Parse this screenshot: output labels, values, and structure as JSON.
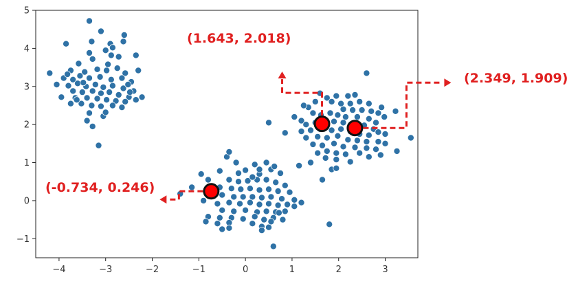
{
  "chart_data": {
    "type": "scatter",
    "title": "",
    "xlabel": "",
    "ylabel": "",
    "xlim": [
      -4.5,
      3.7
    ],
    "ylim": [
      -1.5,
      5.0
    ],
    "xticks": [
      -4,
      -3,
      -2,
      -1,
      0,
      1,
      2,
      3
    ],
    "yticks": [
      -1,
      0,
      1,
      2,
      3,
      4,
      5
    ],
    "xtick_labels": [
      "−4",
      "−3",
      "−2",
      "−1",
      "0",
      "1",
      "2",
      "3"
    ],
    "ytick_labels": [
      "−1",
      "0",
      "1",
      "2",
      "3",
      "4",
      "5"
    ],
    "grid": false,
    "point_color": "#2f72a6",
    "point_edge_color": "#ffffff",
    "highlight_color": "#ff0000",
    "highlight_edge_color": "#111111",
    "annotation_color": "#e02020",
    "series": [
      {
        "points": [
          [
            -3.35,
            4.72
          ],
          [
            -3.1,
            4.45
          ],
          [
            -3.85,
            4.12
          ],
          [
            -3.3,
            4.18
          ],
          [
            -2.9,
            4.12
          ],
          [
            -2.62,
            4.18
          ],
          [
            -2.85,
            4.02
          ],
          [
            -3.0,
            3.95
          ],
          [
            -3.35,
            3.88
          ],
          [
            -2.88,
            3.82
          ],
          [
            -2.35,
            3.82
          ],
          [
            -3.28,
            3.72
          ],
          [
            -2.72,
            3.78
          ],
          [
            -4.2,
            3.35
          ],
          [
            -3.75,
            3.42
          ],
          [
            -3.45,
            3.38
          ],
          [
            -3.18,
            3.45
          ],
          [
            -2.98,
            3.42
          ],
          [
            -2.75,
            3.48
          ],
          [
            -2.58,
            3.35
          ],
          [
            -2.3,
            3.42
          ],
          [
            -3.9,
            3.22
          ],
          [
            -3.7,
            3.18
          ],
          [
            -3.55,
            3.28
          ],
          [
            -3.35,
            3.22
          ],
          [
            -3.12,
            3.25
          ],
          [
            -2.88,
            3.18
          ],
          [
            -2.65,
            3.22
          ],
          [
            -2.45,
            3.12
          ],
          [
            -4.05,
            3.05
          ],
          [
            -3.8,
            3.02
          ],
          [
            -3.6,
            3.08
          ],
          [
            -3.42,
            3.0
          ],
          [
            -3.22,
            3.05
          ],
          [
            -3.05,
            2.98
          ],
          [
            -2.85,
            3.02
          ],
          [
            -2.62,
            2.95
          ],
          [
            -2.4,
            2.88
          ],
          [
            -3.7,
            2.88
          ],
          [
            -3.5,
            2.85
          ],
          [
            -3.28,
            2.88
          ],
          [
            -3.1,
            2.82
          ],
          [
            -2.92,
            2.85
          ],
          [
            -2.72,
            2.78
          ],
          [
            -2.5,
            2.72
          ],
          [
            -2.22,
            2.72
          ],
          [
            -3.95,
            2.72
          ],
          [
            -3.65,
            2.7
          ],
          [
            -3.4,
            2.7
          ],
          [
            -3.18,
            2.68
          ],
          [
            -2.98,
            2.65
          ],
          [
            -2.78,
            2.62
          ],
          [
            -2.58,
            2.6
          ],
          [
            -2.35,
            2.65
          ],
          [
            -3.75,
            2.55
          ],
          [
            -3.52,
            2.55
          ],
          [
            -3.3,
            2.5
          ],
          [
            -3.1,
            2.48
          ],
          [
            -2.85,
            2.5
          ],
          [
            -2.65,
            2.45
          ],
          [
            -3.35,
            2.3
          ],
          [
            -3.05,
            2.22
          ],
          [
            -3.4,
            2.1
          ],
          [
            -3.28,
            1.95
          ],
          [
            -3.15,
            1.45
          ],
          [
            -3.58,
            3.6
          ],
          [
            -2.95,
            3.58
          ],
          [
            -3.48,
            3.1
          ],
          [
            -2.52,
            3.05
          ],
          [
            -3.62,
            2.65
          ],
          [
            -2.48,
            2.85
          ],
          [
            -3.0,
            2.32
          ],
          [
            -3.82,
            3.32
          ],
          [
            -2.6,
            4.35
          ],
          [
            0.5,
            2.05
          ],
          [
            1.05,
            2.2
          ],
          [
            1.2,
            2.1
          ],
          [
            1.35,
            2.45
          ],
          [
            1.5,
            2.6
          ],
          [
            1.75,
            2.7
          ],
          [
            1.95,
            2.75
          ],
          [
            2.2,
            2.75
          ],
          [
            2.35,
            2.78
          ],
          [
            1.6,
            2.82
          ],
          [
            1.85,
            2.6
          ],
          [
            2.05,
            2.55
          ],
          [
            2.25,
            2.55
          ],
          [
            2.45,
            2.6
          ],
          [
            2.65,
            2.55
          ],
          [
            2.6,
            3.35
          ],
          [
            2.1,
            2.4
          ],
          [
            2.3,
            2.38
          ],
          [
            2.5,
            2.38
          ],
          [
            2.7,
            2.35
          ],
          [
            2.85,
            2.3
          ],
          [
            2.98,
            2.2
          ],
          [
            1.45,
            2.3
          ],
          [
            1.62,
            2.25
          ],
          [
            1.82,
            2.3
          ],
          [
            1.98,
            2.25
          ],
          [
            2.15,
            2.2
          ],
          [
            2.4,
            2.2
          ],
          [
            2.65,
            2.15
          ],
          [
            2.8,
            2.05
          ],
          [
            1.3,
            2.0
          ],
          [
            1.5,
            2.05
          ],
          [
            1.7,
            2.05
          ],
          [
            1.9,
            2.08
          ],
          [
            2.1,
            2.05
          ],
          [
            2.3,
            2.02
          ],
          [
            2.55,
            1.98
          ],
          [
            2.75,
            1.88
          ],
          [
            1.2,
            1.82
          ],
          [
            1.4,
            1.85
          ],
          [
            1.6,
            1.88
          ],
          [
            1.85,
            1.85
          ],
          [
            2.05,
            1.88
          ],
          [
            2.25,
            1.82
          ],
          [
            2.45,
            1.75
          ],
          [
            2.65,
            1.72
          ],
          [
            2.85,
            1.8
          ],
          [
            3.0,
            1.75
          ],
          [
            1.3,
            1.65
          ],
          [
            1.55,
            1.68
          ],
          [
            1.75,
            1.65
          ],
          [
            1.98,
            1.7
          ],
          [
            2.2,
            1.6
          ],
          [
            2.4,
            1.58
          ],
          [
            2.6,
            1.55
          ],
          [
            2.85,
            1.55
          ],
          [
            1.45,
            1.48
          ],
          [
            1.65,
            1.45
          ],
          [
            1.9,
            1.5
          ],
          [
            2.1,
            1.42
          ],
          [
            2.35,
            1.4
          ],
          [
            2.6,
            1.38
          ],
          [
            2.8,
            1.35
          ],
          [
            3.0,
            1.5
          ],
          [
            1.55,
            1.25
          ],
          [
            1.75,
            1.3
          ],
          [
            1.95,
            1.25
          ],
          [
            2.15,
            1.22
          ],
          [
            2.45,
            1.25
          ],
          [
            2.65,
            1.15
          ],
          [
            2.9,
            1.2
          ],
          [
            3.25,
            1.3
          ],
          [
            3.55,
            1.65
          ],
          [
            1.4,
            1.0
          ],
          [
            1.95,
            1.08
          ],
          [
            2.25,
            1.02
          ],
          [
            1.85,
            0.82
          ],
          [
            1.95,
            0.85
          ],
          [
            1.15,
            0.92
          ],
          [
            1.65,
            0.55
          ],
          [
            1.8,
            -0.62
          ],
          [
            2.92,
            2.45
          ],
          [
            3.22,
            2.35
          ],
          [
            1.25,
            2.5
          ],
          [
            0.85,
            1.78
          ],
          [
            1.72,
            1.12
          ],
          [
            -1.4,
            0.18
          ],
          [
            -1.15,
            0.35
          ],
          [
            -0.95,
            0.7
          ],
          [
            -0.8,
            0.55
          ],
          [
            -0.55,
            0.78
          ],
          [
            -0.4,
            1.15
          ],
          [
            -0.35,
            1.28
          ],
          [
            -0.2,
            1.0
          ],
          [
            0.0,
            0.8
          ],
          [
            0.2,
            0.95
          ],
          [
            0.3,
            0.7
          ],
          [
            0.45,
            1.0
          ],
          [
            0.3,
            0.82
          ],
          [
            0.55,
            0.82
          ],
          [
            0.75,
            0.72
          ],
          [
            -0.35,
            0.55
          ],
          [
            -0.15,
            0.5
          ],
          [
            0.05,
            0.52
          ],
          [
            0.25,
            0.55
          ],
          [
            0.45,
            0.55
          ],
          [
            0.65,
            0.48
          ],
          [
            0.85,
            0.4
          ],
          [
            -0.55,
            0.35
          ],
          [
            -0.3,
            0.32
          ],
          [
            -0.1,
            0.3
          ],
          [
            0.1,
            0.32
          ],
          [
            0.3,
            0.28
          ],
          [
            0.5,
            0.3
          ],
          [
            0.7,
            0.25
          ],
          [
            0.95,
            0.22
          ],
          [
            -0.75,
            0.12
          ],
          [
            -0.5,
            0.15
          ],
          [
            -0.25,
            0.1
          ],
          [
            -0.05,
            0.1
          ],
          [
            0.15,
            0.1
          ],
          [
            0.35,
            0.08
          ],
          [
            0.55,
            0.1
          ],
          [
            0.78,
            0.05
          ],
          [
            -0.6,
            -0.08
          ],
          [
            -0.35,
            -0.05
          ],
          [
            -0.12,
            -0.08
          ],
          [
            0.1,
            -0.05
          ],
          [
            0.3,
            -0.1
          ],
          [
            0.5,
            -0.08
          ],
          [
            0.7,
            -0.12
          ],
          [
            0.9,
            -0.1
          ],
          [
            1.05,
            0.02
          ],
          [
            -0.5,
            -0.25
          ],
          [
            -0.25,
            -0.28
          ],
          [
            0.0,
            -0.25
          ],
          [
            0.25,
            -0.3
          ],
          [
            0.45,
            -0.28
          ],
          [
            0.65,
            -0.3
          ],
          [
            0.85,
            -0.28
          ],
          [
            -0.8,
            -0.42
          ],
          [
            -0.55,
            -0.45
          ],
          [
            -0.3,
            -0.45
          ],
          [
            -0.05,
            -0.48
          ],
          [
            0.2,
            -0.42
          ],
          [
            0.4,
            -0.5
          ],
          [
            0.6,
            -0.45
          ],
          [
            0.8,
            -0.5
          ],
          [
            -0.85,
            -0.55
          ],
          [
            -0.6,
            -0.6
          ],
          [
            -0.35,
            -0.58
          ],
          [
            0.15,
            -0.6
          ],
          [
            0.35,
            -0.68
          ],
          [
            0.5,
            -0.7
          ],
          [
            0.55,
            -0.55
          ],
          [
            -0.5,
            -0.75
          ],
          [
            -0.35,
            -0.72
          ],
          [
            0.35,
            -0.78
          ],
          [
            0.6,
            -1.2
          ],
          [
            1.05,
            -0.15
          ],
          [
            1.2,
            -0.05
          ],
          [
            -0.15,
            0.72
          ],
          [
            0.15,
            0.62
          ],
          [
            0.62,
            0.9
          ],
          [
            -0.9,
            0.0
          ],
          [
            0.72,
            -0.32
          ]
        ]
      }
    ],
    "highlights": [
      {
        "x": -0.734,
        "y": 0.246,
        "label": "(-0.734,  0.246)"
      },
      {
        "x": 1.643,
        "y": 2.018,
        "label": "(1.643,  2.018)"
      },
      {
        "x": 2.349,
        "y": 1.909,
        "label": "(2.349,  1.909)"
      }
    ]
  }
}
